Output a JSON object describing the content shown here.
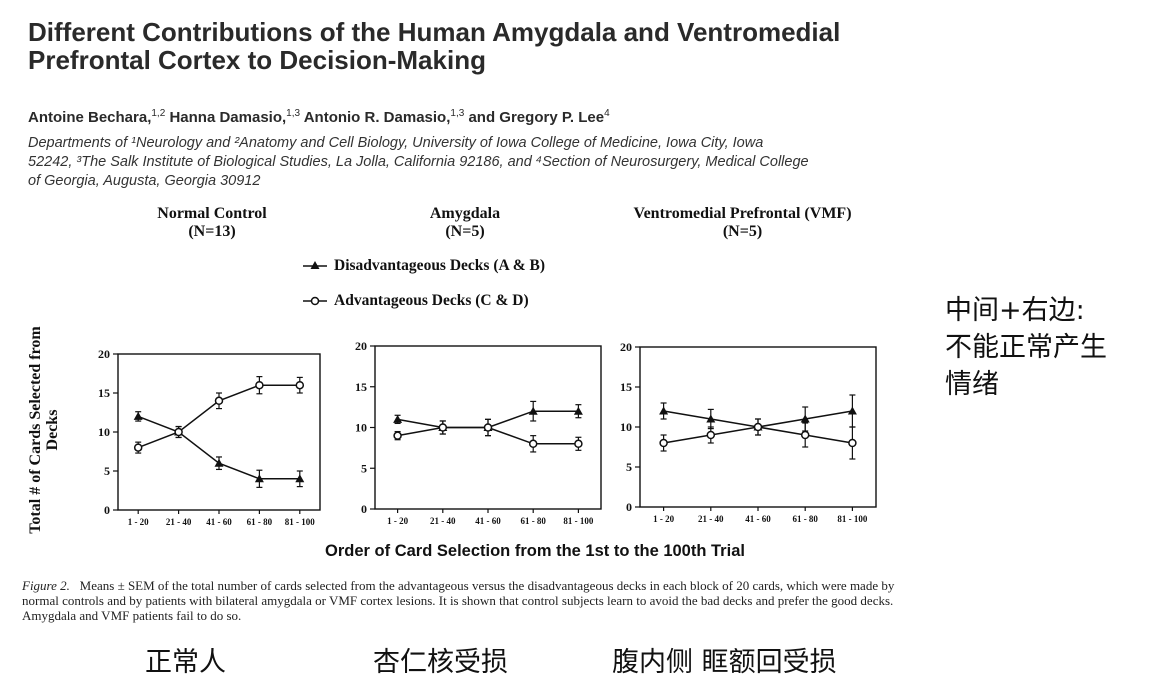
{
  "paper": {
    "title_line1": "Different Contributions of the Human Amygdala and Ventromedial",
    "title_line2": "Prefrontal Cortex to Decision-Making",
    "authors": [
      {
        "name": "Antoine Bechara,",
        "sup": "1,2"
      },
      {
        "name": "Hanna Damasio,",
        "sup": "1,3"
      },
      {
        "name": "Antonio R. Damasio,",
        "sup": "1,3"
      },
      {
        "name": "and Gregory P. Lee",
        "sup": "4"
      }
    ],
    "affiliation_line1": "Departments of ¹Neurology and ²Anatomy and Cell Biology, University of Iowa College of Medicine, Iowa City, Iowa",
    "affiliation_line2": "52242, ³The Salk Institute of Biological Studies, La Jolla, California 92186, and ⁴Section of Neurosurgery, Medical College",
    "affiliation_line3": "of Georgia, Augusta, Georgia 30912"
  },
  "figure": {
    "ylabel_line1": "Total # of Cards Selected from",
    "ylabel_line2": "Decks",
    "xlabel": "Order of Card Selection from the 1st to the 100th Trial",
    "caption_label": "Figure 2.",
    "caption_text": "Means ± SEM of the total number of cards selected from the advantageous versus the disadvantageous decks in each block of 20 cards, which were made by normal controls and by patients with bilateral amygdala or VMF cortex lesions. It is shown that control subjects learn to avoid the bad decks and prefer the good decks. Amygdala and VMF patients fail to do so.",
    "legend": [
      {
        "key": "disadv",
        "label": "Disadvantageous Decks (A & B)",
        "marker": "filled-triangle"
      },
      {
        "key": "adv",
        "label": "Advantageous Decks (C & D)",
        "marker": "open-circle"
      }
    ]
  },
  "chart_data": [
    {
      "type": "line",
      "title": "Normal Control",
      "subtitle": "(N=13)",
      "categories": [
        "1 - 20",
        "21 - 40",
        "41 - 60",
        "61 - 80",
        "81 - 100"
      ],
      "ylim": [
        0,
        20
      ],
      "yticks": [
        "0",
        "5",
        "10",
        "15",
        "20"
      ],
      "series": [
        {
          "key": "disadv",
          "values": [
            12,
            10,
            6,
            4,
            4
          ],
          "err": [
            0.6,
            0.7,
            0.8,
            1.1,
            1.0
          ]
        },
        {
          "key": "adv",
          "values": [
            8,
            10,
            14,
            16,
            16
          ],
          "err": [
            0.7,
            0.7,
            1.0,
            1.1,
            1.0
          ]
        }
      ]
    },
    {
      "type": "line",
      "title": "Amygdala",
      "subtitle": "(N=5)",
      "categories": [
        "1 - 20",
        "21 - 40",
        "41 - 60",
        "61 - 80",
        "81 - 100"
      ],
      "ylim": [
        0,
        20
      ],
      "yticks": [
        "0",
        "5",
        "10",
        "15",
        "20"
      ],
      "series": [
        {
          "key": "disadv",
          "values": [
            11,
            10,
            10,
            12,
            12
          ],
          "err": [
            0.5,
            0.8,
            1.0,
            1.2,
            0.8
          ]
        },
        {
          "key": "adv",
          "values": [
            9,
            10,
            10,
            8,
            8
          ],
          "err": [
            0.5,
            0.8,
            1.0,
            1.0,
            0.8
          ]
        }
      ]
    },
    {
      "type": "line",
      "title": "Ventromedial Prefrontal (VMF)",
      "subtitle": "(N=5)",
      "categories": [
        "1 - 20",
        "21 - 40",
        "41 - 60",
        "61 - 80",
        "81 - 100"
      ],
      "ylim": [
        0,
        20
      ],
      "yticks": [
        "0",
        "5",
        "10",
        "15",
        "20"
      ],
      "series": [
        {
          "key": "disadv",
          "values": [
            12,
            11,
            10,
            11,
            12
          ],
          "err": [
            1.0,
            1.2,
            1.0,
            1.5,
            2.0
          ]
        },
        {
          "key": "adv",
          "values": [
            8,
            9,
            10,
            9,
            8
          ],
          "err": [
            1.0,
            1.0,
            1.0,
            1.5,
            2.0
          ]
        }
      ]
    }
  ],
  "annotations": {
    "note_line1": "中间+右边:",
    "note_line2": "不能正常产生",
    "note_line3": "情绪",
    "label_normal": "正常人",
    "label_amygdala": "杏仁核受损",
    "label_vmf": "腹内侧 眶额回受损"
  }
}
